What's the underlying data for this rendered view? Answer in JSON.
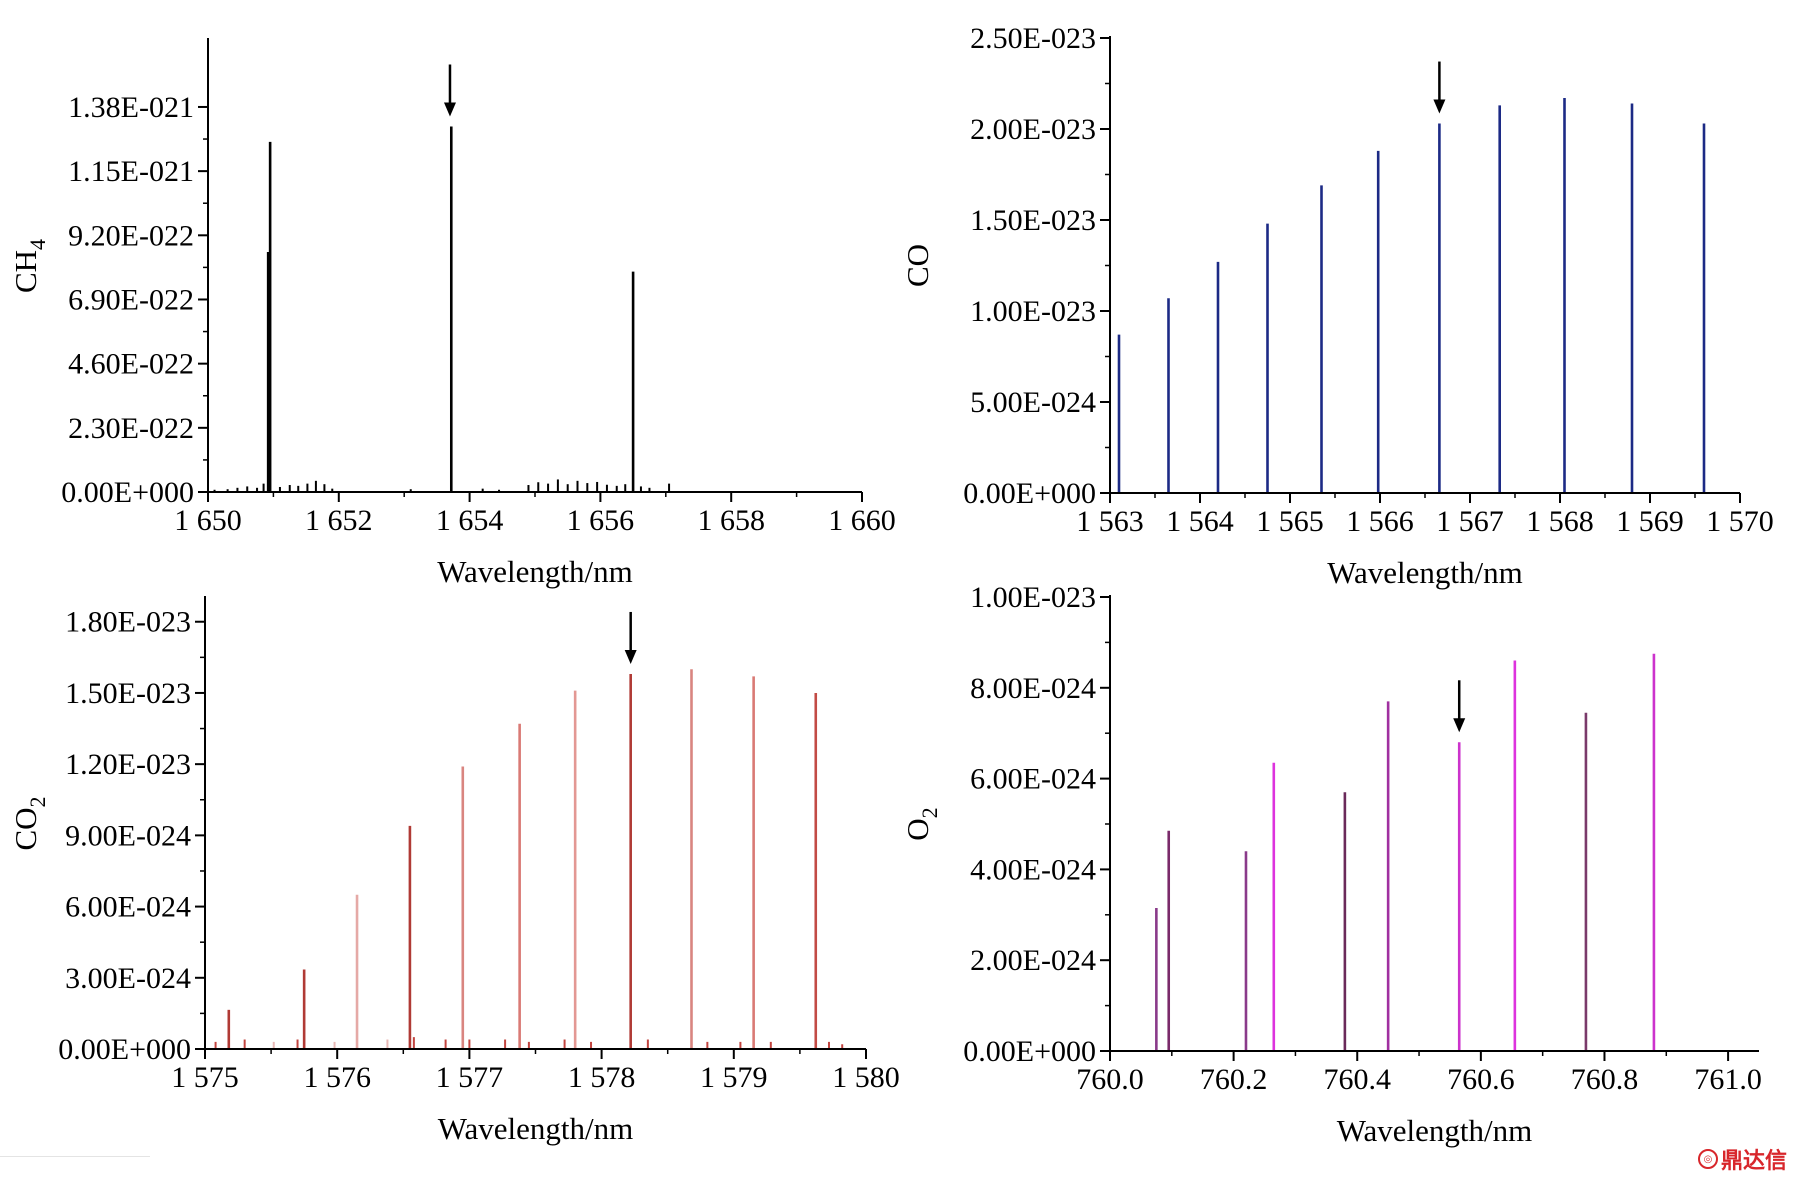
{
  "chart_data": [
    {
      "id": "ch4",
      "type": "bar",
      "title": "",
      "ylabel_main": "CH",
      "ylabel_sub": "4",
      "xlabel": "Wavelength/nm",
      "color": "#000000",
      "xlim": [
        1650,
        1660
      ],
      "ylim": [
        0,
        1.62e-21
      ],
      "xticks": [
        1650,
        1652,
        1654,
        1656,
        1658,
        1660
      ],
      "xtick_labels": [
        "1 650",
        "1 652",
        "1 654",
        "1 656",
        "1 658",
        "1 660"
      ],
      "yticks": [
        0,
        2.3e-22,
        4.6e-22,
        6.9e-22,
        9.2e-22,
        1.15e-21,
        1.38e-21
      ],
      "ytick_labels": [
        "0.00E+000",
        "2.30E-022",
        "4.60E-022",
        "6.90E-022",
        "9.20E-022",
        "1.15E-021",
        "1.38E-021"
      ],
      "marked_line": 1653.7,
      "lines": [
        {
          "x": 1650.95,
          "y": 1.255e-21
        },
        {
          "x": 1650.92,
          "y": 8.6e-22
        },
        {
          "x": 1653.72,
          "y": 1.31e-21
        },
        {
          "x": 1656.5,
          "y": 7.9e-22
        },
        {
          "x": 1650.1,
          "y": 8e-24
        },
        {
          "x": 1650.3,
          "y": 1e-23
        },
        {
          "x": 1650.45,
          "y": 1.5e-23
        },
        {
          "x": 1650.6,
          "y": 2e-23
        },
        {
          "x": 1650.75,
          "y": 1.5e-23
        },
        {
          "x": 1650.85,
          "y": 3e-23
        },
        {
          "x": 1651.1,
          "y": 1.8e-23
        },
        {
          "x": 1651.25,
          "y": 2.5e-23
        },
        {
          "x": 1651.38,
          "y": 2.2e-23
        },
        {
          "x": 1651.52,
          "y": 3e-23
        },
        {
          "x": 1651.65,
          "y": 4e-23
        },
        {
          "x": 1651.78,
          "y": 2.8e-23
        },
        {
          "x": 1651.9,
          "y": 1.2e-23
        },
        {
          "x": 1653.1,
          "y": 1e-23
        },
        {
          "x": 1654.2,
          "y": 1.2e-23
        },
        {
          "x": 1654.45,
          "y": 8e-24
        },
        {
          "x": 1654.9,
          "y": 2.5e-23
        },
        {
          "x": 1655.05,
          "y": 3.5e-23
        },
        {
          "x": 1655.2,
          "y": 3e-23
        },
        {
          "x": 1655.35,
          "y": 4.5e-23
        },
        {
          "x": 1655.5,
          "y": 2.8e-23
        },
        {
          "x": 1655.65,
          "y": 4e-23
        },
        {
          "x": 1655.8,
          "y": 3.2e-23
        },
        {
          "x": 1655.95,
          "y": 3.6e-23
        },
        {
          "x": 1656.1,
          "y": 2.6e-23
        },
        {
          "x": 1656.25,
          "y": 2.2e-23
        },
        {
          "x": 1656.38,
          "y": 2.8e-23
        },
        {
          "x": 1656.62,
          "y": 2e-23
        },
        {
          "x": 1656.75,
          "y": 1.5e-23
        },
        {
          "x": 1657.05,
          "y": 3e-23
        }
      ]
    },
    {
      "id": "co",
      "type": "bar",
      "title": "",
      "ylabel_main": "CO",
      "ylabel_sub": "",
      "xlabel": "Wavelength/nm",
      "color": "#1c2a85",
      "xlim": [
        1563,
        1570
      ],
      "ylim": [
        0,
        2.5e-23
      ],
      "xticks": [
        1563,
        1564,
        1565,
        1566,
        1567,
        1568,
        1569,
        1570
      ],
      "xtick_labels": [
        "1 563",
        "1 564",
        "1 565",
        "1 566",
        "1 567",
        "1 568",
        "1 569",
        "1 570"
      ],
      "yticks": [
        0,
        5e-24,
        1e-23,
        1.5e-23,
        2e-23,
        2.5e-23
      ],
      "ytick_labels": [
        "0.00E+000",
        "5.00E-024",
        "1.00E-023",
        "1.50E-023",
        "2.00E-023",
        "2.50E-023"
      ],
      "marked_line": 1566.66,
      "lines": [
        {
          "x": 1563.1,
          "y": 8.7e-24
        },
        {
          "x": 1563.65,
          "y": 1.07e-23
        },
        {
          "x": 1564.2,
          "y": 1.27e-23
        },
        {
          "x": 1564.75,
          "y": 1.48e-23
        },
        {
          "x": 1565.35,
          "y": 1.69e-23
        },
        {
          "x": 1565.98,
          "y": 1.88e-23
        },
        {
          "x": 1566.66,
          "y": 2.03e-23
        },
        {
          "x": 1567.33,
          "y": 2.13e-23
        },
        {
          "x": 1568.05,
          "y": 2.17e-23
        },
        {
          "x": 1568.8,
          "y": 2.14e-23
        },
        {
          "x": 1569.6,
          "y": 2.03e-23
        }
      ]
    },
    {
      "id": "co2",
      "type": "bar",
      "title": "",
      "ylabel_main": "CO",
      "ylabel_sub": "2",
      "xlabel": "Wavelength/nm",
      "color": "#c1443f",
      "xlim": [
        1575,
        1580
      ],
      "ylim": [
        0,
        1.9e-23
      ],
      "xticks": [
        1575,
        1576,
        1577,
        1578,
        1579,
        1580
      ],
      "xtick_labels": [
        "1 575",
        "1 576",
        "1 577",
        "1 578",
        "1 579",
        "1 580"
      ],
      "yticks": [
        0,
        3e-24,
        6e-24,
        9e-24,
        1.2e-23,
        1.5e-23,
        1.8e-23
      ],
      "ytick_labels": [
        "0.00E+000",
        "3.00E-024",
        "6.00E-024",
        "9.00E-024",
        "1.20E-023",
        "1.50E-023",
        "1.80E-023"
      ],
      "marked_line": 1578.22,
      "lines": [
        {
          "x": 1575.18,
          "y": 1.65e-24,
          "shade": "#b03a35"
        },
        {
          "x": 1575.75,
          "y": 3.35e-24,
          "shade": "#b03a35"
        },
        {
          "x": 1576.15,
          "y": 6.5e-24,
          "shade": "#e5a9a6"
        },
        {
          "x": 1576.55,
          "y": 9.4e-24,
          "shade": "#b03a35"
        },
        {
          "x": 1576.95,
          "y": 1.19e-23,
          "shade": "#d98580"
        },
        {
          "x": 1577.38,
          "y": 1.37e-23,
          "shade": "#d97a75"
        },
        {
          "x": 1577.8,
          "y": 1.51e-23,
          "shade": "#e39893"
        },
        {
          "x": 1578.22,
          "y": 1.58e-23,
          "shade": "#b03a35"
        },
        {
          "x": 1578.68,
          "y": 1.6e-23,
          "shade": "#d98580"
        },
        {
          "x": 1579.15,
          "y": 1.57e-23,
          "shade": "#d97a75"
        },
        {
          "x": 1579.62,
          "y": 1.5e-23,
          "shade": "#c24b45"
        },
        {
          "x": 1575.08,
          "y": 3e-25,
          "shade": "#c1443f"
        },
        {
          "x": 1575.3,
          "y": 4e-25,
          "shade": "#c1443f"
        },
        {
          "x": 1575.52,
          "y": 3e-25,
          "shade": "#e8b8b5"
        },
        {
          "x": 1575.7,
          "y": 4e-25,
          "shade": "#c1443f"
        },
        {
          "x": 1575.98,
          "y": 3e-25,
          "shade": "#e8b8b5"
        },
        {
          "x": 1576.38,
          "y": 4e-25,
          "shade": "#e8b8b5"
        },
        {
          "x": 1576.58,
          "y": 5e-25,
          "shade": "#c1443f"
        },
        {
          "x": 1576.82,
          "y": 4e-25,
          "shade": "#c1443f"
        },
        {
          "x": 1577.0,
          "y": 4e-25,
          "shade": "#c1443f"
        },
        {
          "x": 1577.27,
          "y": 4e-25,
          "shade": "#c1443f"
        },
        {
          "x": 1577.45,
          "y": 3e-25,
          "shade": "#c1443f"
        },
        {
          "x": 1577.72,
          "y": 4e-25,
          "shade": "#c1443f"
        },
        {
          "x": 1577.92,
          "y": 3e-25,
          "shade": "#c1443f"
        },
        {
          "x": 1578.35,
          "y": 4e-25,
          "shade": "#c1443f"
        },
        {
          "x": 1578.8,
          "y": 3e-25,
          "shade": "#c1443f"
        },
        {
          "x": 1579.05,
          "y": 3e-25,
          "shade": "#c1443f"
        },
        {
          "x": 1579.28,
          "y": 3e-25,
          "shade": "#c1443f"
        },
        {
          "x": 1579.72,
          "y": 3e-25,
          "shade": "#c1443f"
        },
        {
          "x": 1579.82,
          "y": 2e-25,
          "shade": "#c1443f"
        }
      ]
    },
    {
      "id": "o2",
      "type": "bar",
      "title": "",
      "ylabel_main": "O",
      "ylabel_sub": "2",
      "xlabel": "Wavelength/nm",
      "color": "#b23bb2",
      "xlim": [
        760.0,
        761.05
      ],
      "ylim": [
        0,
        1e-23
      ],
      "xticks": [
        760.0,
        760.2,
        760.4,
        760.6,
        760.8,
        761.0
      ],
      "xtick_labels": [
        "760.0",
        "760.2",
        "760.4",
        "760.6",
        "760.8",
        "761.0"
      ],
      "yticks": [
        0,
        2e-24,
        4e-24,
        6e-24,
        8e-24,
        1e-23
      ],
      "ytick_labels": [
        "0.00E+000",
        "2.00E-024",
        "4.00E-024",
        "6.00E-024",
        "8.00E-024",
        "1.00E-023"
      ],
      "marked_line": 760.565,
      "lines": [
        {
          "x": 760.075,
          "y": 3.15e-24,
          "shade": "#8a3a8a"
        },
        {
          "x": 760.095,
          "y": 4.85e-24,
          "shade": "#7a2a6a"
        },
        {
          "x": 760.22,
          "y": 4.4e-24,
          "shade": "#8a3a8a"
        },
        {
          "x": 760.265,
          "y": 6.35e-24,
          "shade": "#dd33dd"
        },
        {
          "x": 760.38,
          "y": 5.7e-24,
          "shade": "#6a2a5a"
        },
        {
          "x": 760.45,
          "y": 7.7e-24,
          "shade": "#a030a0"
        },
        {
          "x": 760.565,
          "y": 6.8e-24,
          "shade": "#cc33cc"
        },
        {
          "x": 760.655,
          "y": 8.6e-24,
          "shade": "#dd33dd"
        },
        {
          "x": 760.77,
          "y": 7.45e-24,
          "shade": "#7a3a6a"
        },
        {
          "x": 760.88,
          "y": 8.75e-24,
          "shade": "#cc33cc"
        }
      ]
    }
  ],
  "watermark": {
    "text": "鼎达信"
  }
}
